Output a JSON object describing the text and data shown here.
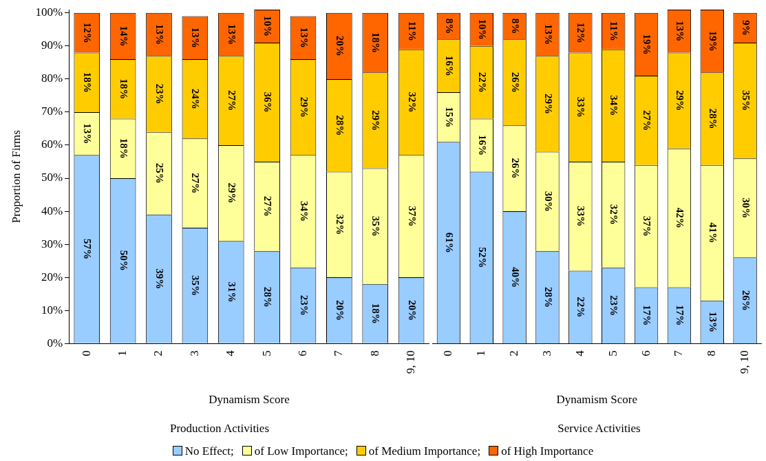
{
  "chart_data": [
    {
      "type": "bar",
      "title": "Production Activities",
      "xlabel": "Dynamism Score",
      "ylabel": "Proportion of Firms",
      "categories": [
        "0",
        "1",
        "2",
        "3",
        "4",
        "5",
        "6",
        "7",
        "8",
        "9, 10"
      ],
      "stacked": true,
      "legend": "bottom",
      "ylim": [
        0,
        101
      ],
      "yticks": [
        {
          "value": 0,
          "label": "0%"
        },
        {
          "value": 10,
          "label": "10%"
        },
        {
          "value": 20,
          "label": "20%"
        },
        {
          "value": 30,
          "label": "30%"
        },
        {
          "value": 40,
          "label": "40%"
        },
        {
          "value": 50,
          "label": "50%"
        },
        {
          "value": 60,
          "label": "60%"
        },
        {
          "value": 70,
          "label": "70%"
        },
        {
          "value": 80,
          "label": "80%"
        },
        {
          "value": 90,
          "label": "90%"
        },
        {
          "value": 100,
          "label": "100%"
        }
      ],
      "series": [
        {
          "name": "No Effect;",
          "color": "#99ccff",
          "values": [
            57,
            50,
            39,
            35,
            31,
            28,
            23,
            20,
            18,
            20
          ],
          "value_labels": [
            "57%",
            "50%",
            "39%",
            "35%",
            "31%",
            "28%",
            "23%",
            "20%",
            "18%",
            "20%"
          ]
        },
        {
          "name": "of Low Importance;",
          "color": "#ffff99",
          "values": [
            13,
            18,
            25,
            27,
            29,
            27,
            34,
            32,
            35,
            37
          ],
          "value_labels": [
            "13%",
            "18%",
            "25%",
            "27%",
            "29%",
            "27%",
            "34%",
            "32%",
            "35%",
            "37%"
          ]
        },
        {
          "name": "of Medium Importance;",
          "color": "#ffcc00",
          "values": [
            18,
            18,
            23,
            24,
            27,
            36,
            29,
            28,
            29,
            32
          ],
          "value_labels": [
            "18%",
            "18%",
            "23%",
            "24%",
            "27%",
            "36%",
            "29%",
            "28%",
            "29%",
            "32%"
          ]
        },
        {
          "name": "of High Importance",
          "color": "#ff6600",
          "values": [
            12,
            14,
            13,
            13,
            13,
            10,
            13,
            20,
            18,
            11
          ],
          "value_labels": [
            "12%",
            "14%",
            "13%",
            "13%",
            "13%",
            "10%",
            "13%",
            "20%",
            "18%",
            "11%"
          ]
        }
      ]
    },
    {
      "type": "bar",
      "title": "Service Activities",
      "xlabel": "Dynamism Score",
      "categories": [
        "0",
        "1",
        "2",
        "3",
        "4",
        "5",
        "6",
        "7",
        "8",
        "9, 10"
      ],
      "stacked": true,
      "tick_labels": "x",
      "ylim": [
        0,
        101
      ],
      "series": [
        {
          "color": "#99ccff",
          "values": [
            61,
            52,
            40,
            28,
            22,
            23,
            17,
            17,
            13,
            26
          ],
          "value_labels": [
            "61%",
            "52%",
            "40%",
            "28%",
            "22%",
            "23%",
            "17%",
            "17%",
            "13%",
            "26%"
          ]
        },
        {
          "color": "#ffff99",
          "values": [
            15,
            16,
            26,
            30,
            33,
            32,
            37,
            42,
            41,
            30
          ],
          "value_labels": [
            "15%",
            "16%",
            "26%",
            "30%",
            "33%",
            "32%",
            "37%",
            "42%",
            "41%",
            "30%"
          ]
        },
        {
          "color": "#ffcc00",
          "values": [
            16,
            22,
            26,
            29,
            33,
            34,
            27,
            29,
            28,
            35
          ],
          "value_labels": [
            "16%",
            "22%",
            "26%",
            "29%",
            "33%",
            "34%",
            "27%",
            "29%",
            "28%",
            "35%"
          ]
        },
        {
          "color": "#ff6600",
          "values": [
            8,
            10,
            8,
            13,
            12,
            11,
            19,
            13,
            19,
            9
          ],
          "value_labels": [
            "8%",
            "10%",
            "8%",
            "13%",
            "12%",
            "11%",
            "19%",
            "13%",
            "19%",
            "9%"
          ]
        }
      ]
    }
  ]
}
